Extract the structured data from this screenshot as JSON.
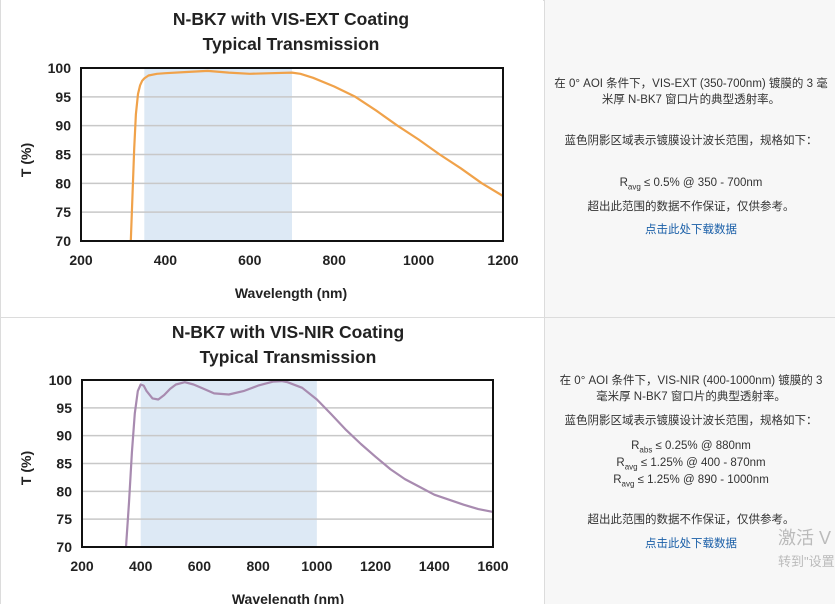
{
  "charts": [
    {
      "title_line1": "N-BK7 with VIS-EXT Coating",
      "title_line2": "Typical Transmission",
      "xlabel": "Wavelength (nm)",
      "ylabel": "T (%)"
    },
    {
      "title_line1": "N-BK7 with VIS-NIR Coating",
      "title_line2": "Typical Transmission",
      "xlabel": "Wavelength (nm)",
      "ylabel": "T (%)"
    }
  ],
  "descriptions": [
    {
      "line1": "在 0° AOI 条件下，VIS-EXT (350-700nm) 镀膜的 3 毫米厚 N-BK7 窗口片的典型透射率。",
      "line2": "蓝色阴影区域表示镀膜设计波长范围，规格如下：",
      "spec1_sym": "R",
      "spec1_sub": "avg",
      "spec1_text": " ≤ 0.5% @ 350 - 700nm",
      "line3": "超出此范围的数据不作保证，仅供参考。",
      "link": "点击此处下载数据"
    },
    {
      "line1": "在 0° AOI 条件下，VIS-NIR (400-1000nm) 镀膜的 3 毫米厚 N-BK7 窗口片的典型透射率。",
      "line2": "蓝色阴影区域表示镀膜设计波长范围，规格如下：",
      "spec1_sym": "R",
      "spec1_sub": "abs",
      "spec1_text": " ≤ 0.25% @ 880nm",
      "spec2_sym": "R",
      "spec2_sub": "avg",
      "spec2_text": " ≤ 1.25% @ 400 - 870nm",
      "spec3_sym": "R",
      "spec3_sub": "avg",
      "spec3_text": " ≤ 1.25% @ 890 - 1000nm",
      "line3": "超出此范围的数据不作保证，仅供参考。",
      "link": "点击此处下载数据"
    }
  ],
  "watermark": {
    "line1": "激活 V",
    "line2": "转到\"设置"
  },
  "colors": {
    "curve1": "#f0a24a",
    "curve2": "#a88bb0",
    "shade": "#dde9f5",
    "grid": "#c8c8c8"
  },
  "chart_data": [
    {
      "type": "line",
      "title": "N-BK7 with VIS-EXT Coating Typical Transmission",
      "xlabel": "Wavelength (nm)",
      "ylabel": "T (%)",
      "xlim": [
        200,
        1200
      ],
      "ylim": [
        70,
        100
      ],
      "xticks": [
        200,
        400,
        600,
        800,
        1000,
        1200
      ],
      "yticks": [
        70,
        75,
        80,
        85,
        90,
        95,
        100
      ],
      "shaded_region": [
        350,
        700
      ],
      "grid": "horizontal",
      "series": [
        {
          "x": [
            318,
            322,
            326,
            330,
            335,
            340,
            345,
            350,
            360,
            380,
            400,
            450,
            500,
            550,
            600,
            650,
            700,
            720,
            750,
            800,
            850,
            900,
            950,
            1000,
            1050,
            1100,
            1150,
            1200
          ],
          "values": [
            70,
            78,
            86,
            92,
            95.5,
            97,
            97.8,
            98.2,
            98.7,
            99.0,
            99.1,
            99.3,
            99.5,
            99.2,
            99.0,
            99.1,
            99.2,
            99.0,
            98.3,
            96.8,
            95.0,
            92.6,
            90.0,
            87.6,
            85.0,
            82.6,
            80.0,
            77.8
          ]
        }
      ]
    },
    {
      "type": "line",
      "title": "N-BK7 with VIS-NIR Coating Typical Transmission",
      "xlabel": "Wavelength (nm)",
      "ylabel": "T (%)",
      "xlim": [
        200,
        1600
      ],
      "ylim": [
        70,
        100
      ],
      "xticks": [
        200,
        400,
        600,
        800,
        1000,
        1200,
        1400,
        1600
      ],
      "yticks": [
        70,
        75,
        80,
        85,
        90,
        95,
        100
      ],
      "shaded_region": [
        400,
        1000
      ],
      "grid": "horizontal",
      "series": [
        {
          "x": [
            350,
            360,
            370,
            380,
            390,
            400,
            410,
            420,
            440,
            460,
            480,
            500,
            520,
            550,
            580,
            610,
            650,
            700,
            750,
            800,
            850,
            880,
            900,
            950,
            1000,
            1050,
            1100,
            1150,
            1200,
            1250,
            1300,
            1350,
            1400,
            1450,
            1500,
            1550,
            1600
          ],
          "values": [
            70,
            78,
            87,
            94,
            98,
            99.2,
            99.0,
            98.0,
            96.7,
            96.5,
            97.3,
            98.4,
            99.2,
            99.6,
            99.2,
            98.5,
            97.6,
            97.4,
            98.0,
            99.0,
            99.7,
            99.8,
            99.6,
            98.6,
            96.5,
            93.8,
            91.0,
            88.5,
            86.2,
            84.0,
            82.2,
            80.8,
            79.4,
            78.5,
            77.6,
            76.8,
            76.3
          ]
        }
      ]
    }
  ]
}
